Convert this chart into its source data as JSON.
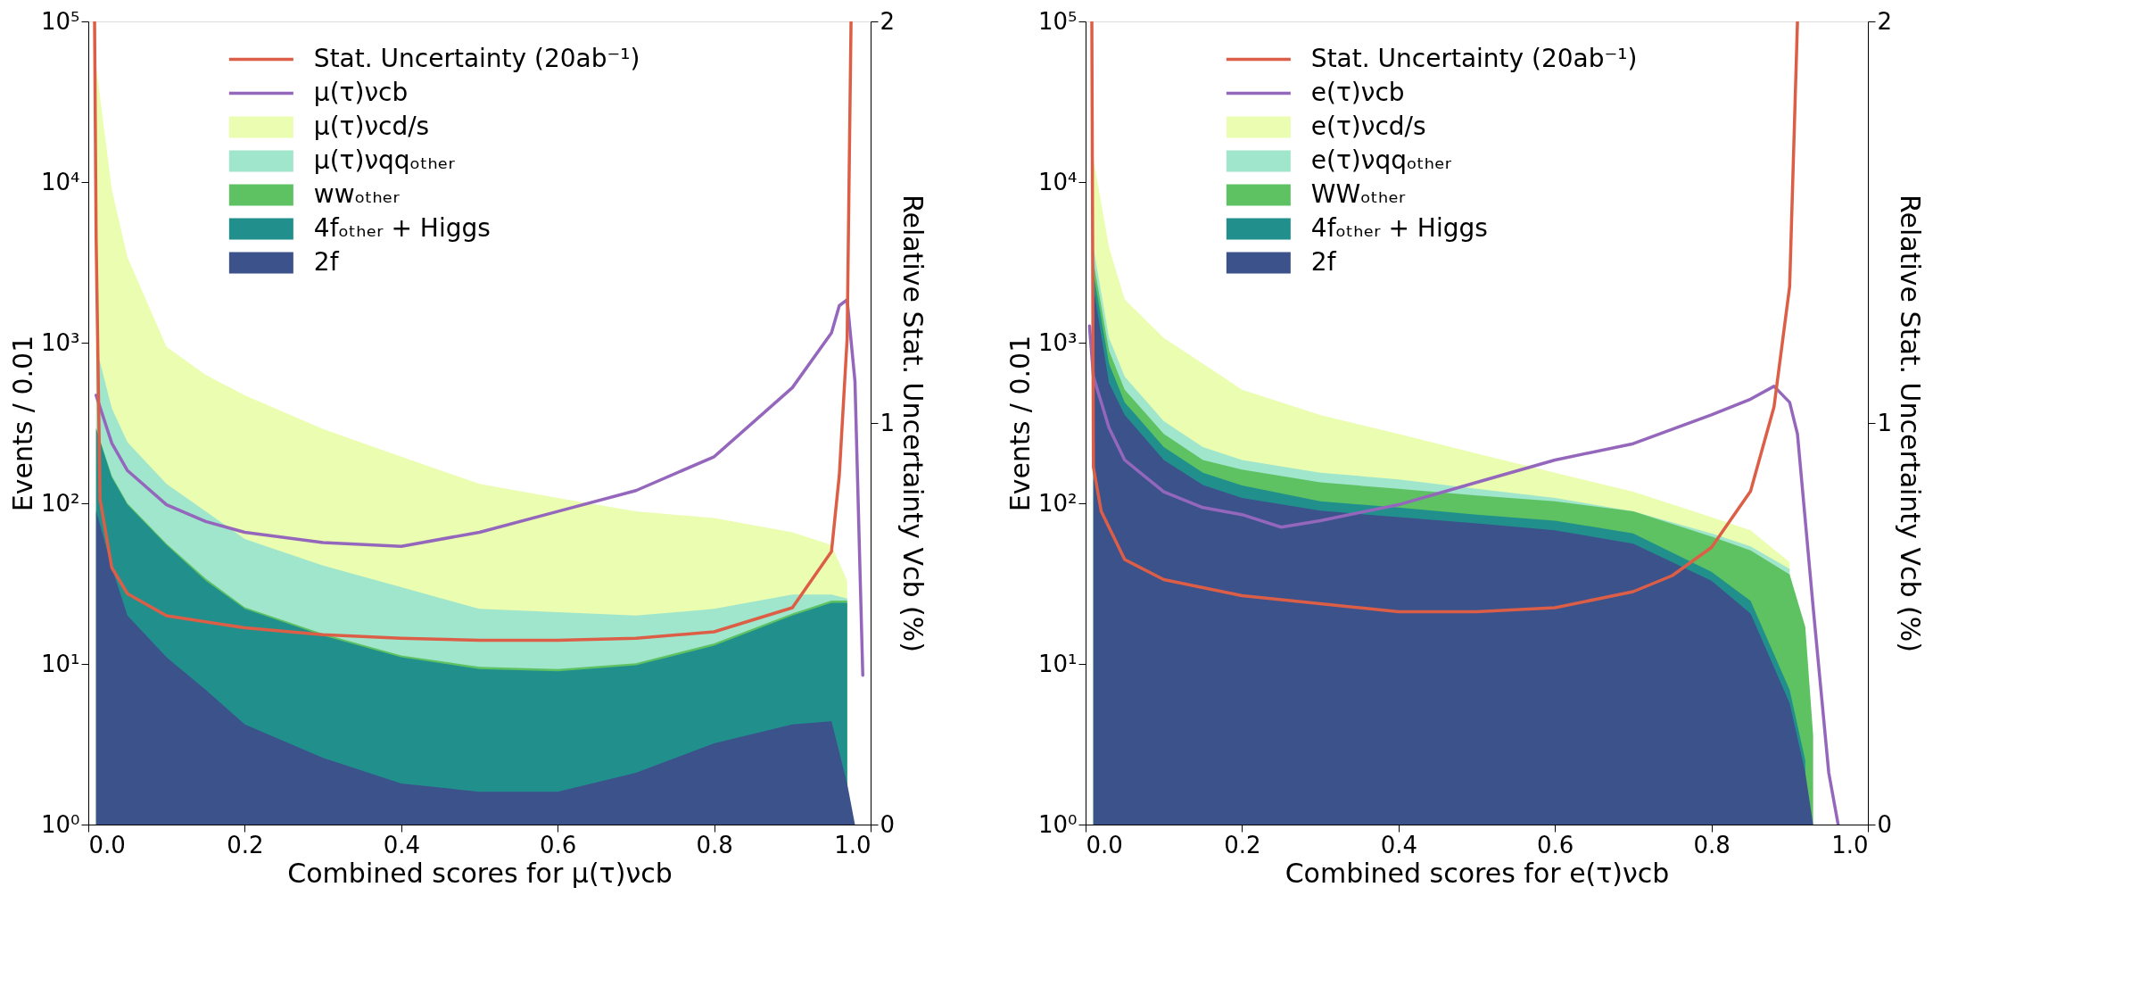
{
  "chart_data": [
    {
      "type": "area",
      "log": "y",
      "grid": false,
      "legend": "top",
      "xlabel": "Combined scores for μ(τ)νcb",
      "ylabel": "Events / 0.01",
      "y2label": "Relative Stat. Uncertainty Vcb (%)",
      "xlim": [
        0,
        1
      ],
      "xticks": [
        {
          "value": 0,
          "label": "0.0"
        },
        {
          "value": 0.2,
          "label": "0.2"
        },
        {
          "value": 0.4,
          "label": "0.4"
        },
        {
          "value": 0.6,
          "label": "0.6"
        },
        {
          "value": 0.8,
          "label": "0.8"
        },
        {
          "value": 1,
          "label": "1.0"
        }
      ],
      "ylim": [
        1,
        100000
      ],
      "yticks": [
        {
          "value": 1,
          "label": "10⁰"
        },
        {
          "value": 10,
          "label": "10¹"
        },
        {
          "value": 100,
          "label": "10²"
        },
        {
          "value": 1000,
          "label": "10³"
        },
        {
          "value": 10000,
          "label": "10⁴"
        },
        {
          "value": 100000,
          "label": "10⁵"
        }
      ],
      "y2lim": [
        0,
        2
      ],
      "y2ticks": [
        0,
        1,
        2
      ],
      "series": [
        {
          "name": "Stat. Uncertainty (20ab⁻¹)",
          "type": "line",
          "axis": "y2",
          "color": "#dd5e47",
          "x": [
            0.008,
            0.01,
            0.015,
            0.03,
            0.05,
            0.1,
            0.2,
            0.3,
            0.4,
            0.5,
            0.6,
            0.7,
            0.8,
            0.9,
            0.95,
            0.96,
            0.97,
            0.975
          ],
          "values": [
            2.0,
            1.46,
            0.81,
            0.64,
            0.575,
            0.52,
            0.49,
            0.473,
            0.464,
            0.459,
            0.459,
            0.464,
            0.48,
            0.54,
            0.68,
            0.87,
            1.21,
            2.0
          ]
        },
        {
          "name": "μ(τ)νcb",
          "type": "line",
          "color": "#9467bd",
          "x": [
            0.01,
            0.03,
            0.05,
            0.1,
            0.15,
            0.2,
            0.3,
            0.4,
            0.5,
            0.6,
            0.7,
            0.8,
            0.9,
            0.95,
            0.96,
            0.97,
            0.98,
            0.99
          ],
          "values": [
            470,
            237,
            160,
            98,
            77,
            66,
            57,
            54,
            66,
            89,
            120,
            195,
            525,
            1150,
            1700,
            1850,
            575,
            8.5
          ]
        },
        {
          "name": "μ(τ)νcd/s",
          "color": "#eafdb0",
          "x": [
            0.01,
            0.03,
            0.05,
            0.1,
            0.15,
            0.2,
            0.3,
            0.4,
            0.5,
            0.6,
            0.7,
            0.8,
            0.9,
            0.95,
            0.97
          ],
          "values": [
            53000,
            9000,
            3400,
            940,
            630,
            470,
            290,
            195,
            132,
            108,
            89,
            81,
            66,
            55,
            33
          ]
        },
        {
          "name": "μ(τ)νqqₒₜₕₑᵣ",
          "color": "#a0e6cc",
          "x": [
            0.01,
            0.03,
            0.05,
            0.1,
            0.15,
            0.2,
            0.3,
            0.4,
            0.5,
            0.6,
            0.7,
            0.8,
            0.9,
            0.95,
            0.97
          ],
          "values": [
            940,
            390,
            240,
            132,
            89,
            60,
            41,
            30,
            22,
            21,
            20,
            22,
            27,
            27,
            25.5
          ]
        },
        {
          "name": "wwₒₜₕₑᵣ",
          "color": "#5ec262",
          "x": [
            0.01,
            0.03,
            0.05,
            0.1,
            0.15,
            0.2,
            0.3,
            0.4,
            0.5,
            0.6,
            0.7,
            0.8,
            0.9,
            0.95,
            0.97
          ],
          "values": [
            295,
            148,
            100,
            56,
            34,
            22.5,
            15.4,
            11.3,
            9.6,
            9.3,
            10.1,
            13.4,
            20.6,
            24.8,
            24.8
          ]
        },
        {
          "name": "4fₒₜₕₑᵣ + Higgs",
          "color": "#21908d",
          "x": [
            0.01,
            0.03,
            0.05,
            0.1,
            0.15,
            0.2,
            0.3,
            0.4,
            0.5,
            0.6,
            0.7,
            0.8,
            0.9,
            0.95,
            0.97
          ],
          "values": [
            290,
            145,
            98,
            55,
            33,
            22,
            15,
            11,
            9.3,
            9,
            9.8,
            13,
            20,
            24,
            24
          ]
        },
        {
          "name": "2f",
          "color": "#3b528b",
          "x": [
            0.01,
            0.03,
            0.05,
            0.1,
            0.15,
            0.2,
            0.3,
            0.4,
            0.5,
            0.6,
            0.7,
            0.8,
            0.9,
            0.95,
            0.97,
            0.98
          ],
          "values": [
            90,
            40,
            20,
            11,
            6.9,
            4.2,
            2.6,
            1.8,
            1.6,
            1.6,
            2.1,
            3.2,
            4.2,
            4.4,
            1.8,
            1
          ]
        }
      ]
    },
    {
      "type": "area",
      "log": "y",
      "grid": false,
      "legend": "top",
      "xlabel": "Combined scores for e(τ)νcb",
      "ylabel": "Events / 0.01",
      "y2label": "Relative Stat. Uncertainty Vcb (%)",
      "xlim": [
        0,
        1
      ],
      "xticks": [
        {
          "value": 0,
          "label": "0.0"
        },
        {
          "value": 0.2,
          "label": "0.2"
        },
        {
          "value": 0.4,
          "label": "0.4"
        },
        {
          "value": 0.6,
          "label": "0.6"
        },
        {
          "value": 0.8,
          "label": "0.8"
        },
        {
          "value": 1,
          "label": "1.0"
        }
      ],
      "ylim": [
        1,
        100000
      ],
      "yticks": [
        {
          "value": 1,
          "label": "10⁰"
        },
        {
          "value": 10,
          "label": "10¹"
        },
        {
          "value": 100,
          "label": "10²"
        },
        {
          "value": 1000,
          "label": "10³"
        },
        {
          "value": 10000,
          "label": "10⁴"
        },
        {
          "value": 100000,
          "label": "10⁵"
        }
      ],
      "y2lim": [
        0,
        2
      ],
      "y2ticks": [
        0,
        1,
        2
      ],
      "series": [
        {
          "name": "Stat. Uncertainty (20ab⁻¹)",
          "type": "line",
          "axis": "y2",
          "color": "#dd5e47",
          "x": [
            0.008,
            0.01,
            0.02,
            0.05,
            0.1,
            0.2,
            0.3,
            0.4,
            0.5,
            0.6,
            0.7,
            0.75,
            0.8,
            0.85,
            0.88,
            0.9,
            0.91
          ],
          "values": [
            2.0,
            0.89,
            0.78,
            0.66,
            0.61,
            0.57,
            0.55,
            0.53,
            0.53,
            0.54,
            0.58,
            0.62,
            0.69,
            0.83,
            1.04,
            1.34,
            2.0
          ]
        },
        {
          "name": "e(τ)νcb",
          "type": "line",
          "color": "#9467bd",
          "x": [
            0.005,
            0.01,
            0.03,
            0.05,
            0.1,
            0.15,
            0.2,
            0.25,
            0.3,
            0.4,
            0.5,
            0.6,
            0.7,
            0.8,
            0.85,
            0.88,
            0.9,
            0.91,
            0.93,
            0.95,
            0.962
          ],
          "values": [
            1270,
            615,
            295,
            186,
            118,
            94,
            85,
            71,
            78,
            98,
            135,
            186,
            235,
            355,
            445,
            535,
            425,
            270,
            22.6,
            2.1,
            1
          ]
        },
        {
          "name": "e(τ)νcd/s",
          "color": "#eafdb0",
          "x": [
            0.01,
            0.03,
            0.05,
            0.1,
            0.15,
            0.2,
            0.3,
            0.4,
            0.5,
            0.6,
            0.7,
            0.8,
            0.85,
            0.9
          ],
          "values": [
            14000,
            3900,
            1860,
            1070,
            740,
            510,
            355,
            270,
            204,
            155,
            118,
            82,
            68,
            43
          ]
        },
        {
          "name": "e(τ)νqqₒₜₕₑᵣ",
          "color": "#a0e6cc",
          "x": [
            0.01,
            0.03,
            0.05,
            0.1,
            0.15,
            0.2,
            0.3,
            0.4,
            0.5,
            0.6,
            0.7,
            0.8,
            0.85,
            0.9
          ],
          "values": [
            3900,
            1070,
            615,
            324,
            224,
            186,
            155,
            141,
            123,
            108,
            89,
            65,
            54,
            39
          ]
        },
        {
          "name": "WWₒₜₕₑᵣ",
          "color": "#5ec262",
          "x": [
            0.01,
            0.03,
            0.05,
            0.1,
            0.15,
            0.2,
            0.3,
            0.4,
            0.5,
            0.6,
            0.7,
            0.8,
            0.85,
            0.9,
            0.92,
            0.93
          ],
          "values": [
            3200,
            890,
            510,
            270,
            186,
            162,
            135,
            123,
            112,
            103,
            89,
            62,
            51,
            36,
            17,
            3.6
          ]
        },
        {
          "name": "4fₒₜₕₑᵣ + Higgs",
          "color": "#21908d",
          "x": [
            0.01,
            0.03,
            0.05,
            0.1,
            0.15,
            0.2,
            0.3,
            0.4,
            0.5,
            0.6,
            0.7,
            0.8,
            0.85,
            0.9,
            0.92
          ],
          "values": [
            2700,
            740,
            425,
            224,
            155,
            129,
            103,
            94,
            85,
            78,
            65,
            37.5,
            24.7,
            6.9,
            2.5
          ]
        },
        {
          "name": "2f",
          "color": "#3b528b",
          "x": [
            0.01,
            0.03,
            0.05,
            0.1,
            0.15,
            0.2,
            0.3,
            0.4,
            0.5,
            0.6,
            0.7,
            0.8,
            0.85,
            0.9,
            0.92,
            0.93
          ],
          "values": [
            2200,
            560,
            355,
            186,
            130,
            108,
            90,
            82,
            75,
            68,
            56,
            33,
            20.6,
            5.7,
            2.1,
            1
          ]
        }
      ]
    }
  ]
}
